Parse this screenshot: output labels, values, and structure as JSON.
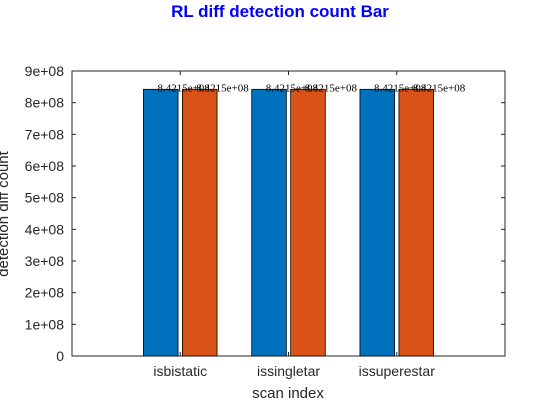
{
  "chart_data": {
    "type": "bar",
    "title": "RL diff detection count Bar",
    "xlabel": "scan index",
    "ylabel": "detection diff count",
    "categories": [
      "isbistatic",
      "issingletar",
      "issuperestar"
    ],
    "series": [
      {
        "values": [
          842150000,
          842150000,
          842150000
        ]
      },
      {
        "values": [
          842150000,
          842150000,
          842150000
        ]
      }
    ],
    "data_labels": [
      [
        "8.4215e+08",
        "8.4215e+08"
      ],
      [
        "8.4215e+08",
        "8.4215e+08"
      ],
      [
        "8.4215e+08",
        "8.4215e+08"
      ]
    ],
    "ylim": [
      0,
      900000000
    ],
    "yticks": [
      0,
      100000000,
      200000000,
      300000000,
      400000000,
      500000000,
      600000000,
      700000000,
      800000000,
      900000000
    ],
    "ytick_labels": [
      "0",
      "1e+08",
      "2e+08",
      "3e+08",
      "4e+08",
      "5e+08",
      "6e+08",
      "7e+08",
      "8e+08",
      "9e+08"
    ],
    "xlim": [
      0,
      4
    ],
    "grid": false,
    "colors": {
      "series": [
        "#0072BD",
        "#D95319"
      ],
      "title": "#0000FF",
      "axis": "#262626"
    }
  }
}
